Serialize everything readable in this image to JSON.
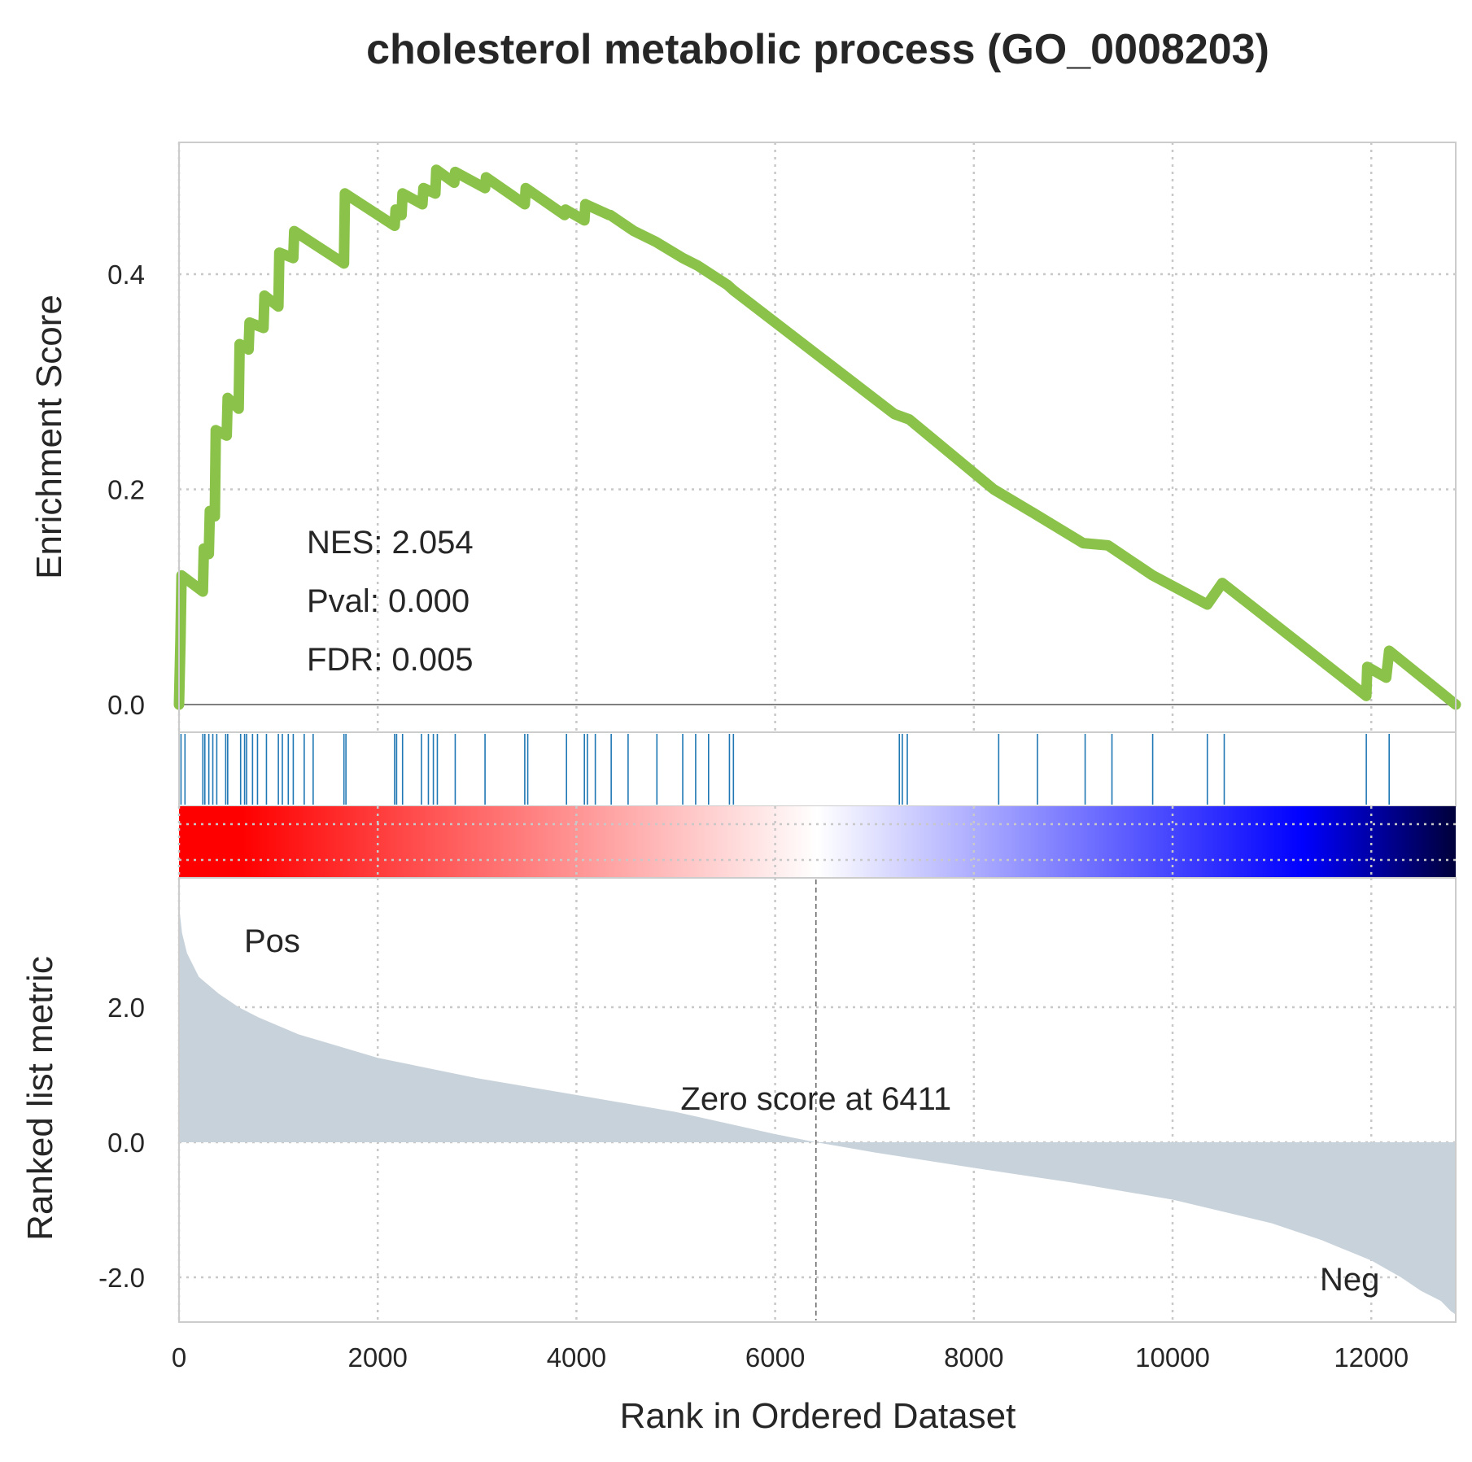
{
  "chart_data": {
    "type": "line",
    "title": "cholesterol metabolic process (GO_0008203)",
    "xlabel": "Rank in Ordered Dataset",
    "xlim": [
      0,
      12850
    ],
    "xticks": [
      "0",
      "2000",
      "4000",
      "6000",
      "8000",
      "10000",
      "12000"
    ],
    "grid": true,
    "colors": {
      "es_line": "#8bc34a",
      "hits": "#1f77b4",
      "ranked_fill": "#c8d2db",
      "pos_label": "#ff0000",
      "neg_label": "#0000ee",
      "heat_stops": [
        "#ff0000",
        "#ffffff",
        "#0000ff",
        "#000040"
      ]
    },
    "enrichment": {
      "ylabel": "Enrichment Score",
      "ylim": [
        0,
        0.5
      ],
      "yticks": [
        "0.0",
        "0.2",
        "0.4"
      ],
      "stats": [
        "NES: 2.054",
        "Pval: 0.000",
        "FDR: 0.005"
      ],
      "es_points": [
        [
          0,
          0
        ],
        [
          15,
          0.06
        ],
        [
          25,
          0.12
        ],
        [
          240,
          0.105
        ],
        [
          250,
          0.145
        ],
        [
          300,
          0.14
        ],
        [
          310,
          0.18
        ],
        [
          360,
          0.175
        ],
        [
          370,
          0.255
        ],
        [
          480,
          0.25
        ],
        [
          490,
          0.285
        ],
        [
          600,
          0.275
        ],
        [
          610,
          0.335
        ],
        [
          700,
          0.33
        ],
        [
          710,
          0.355
        ],
        [
          850,
          0.35
        ],
        [
          860,
          0.38
        ],
        [
          1000,
          0.37
        ],
        [
          1010,
          0.42
        ],
        [
          1150,
          0.415
        ],
        [
          1160,
          0.44
        ],
        [
          1660,
          0.41
        ],
        [
          1670,
          0.475
        ],
        [
          2170,
          0.445
        ],
        [
          2180,
          0.46
        ],
        [
          2240,
          0.455
        ],
        [
          2250,
          0.475
        ],
        [
          2450,
          0.465
        ],
        [
          2460,
          0.48
        ],
        [
          2580,
          0.475
        ],
        [
          2590,
          0.497
        ],
        [
          2770,
          0.485
        ],
        [
          2780,
          0.495
        ],
        [
          3080,
          0.48
        ],
        [
          3090,
          0.49
        ],
        [
          3480,
          0.465
        ],
        [
          3490,
          0.48
        ],
        [
          3880,
          0.455
        ],
        [
          3890,
          0.46
        ],
        [
          4080,
          0.45
        ],
        [
          4090,
          0.465
        ],
        [
          4330,
          0.455
        ],
        [
          4340,
          0.455
        ],
        [
          4580,
          0.44
        ],
        [
          4800,
          0.43
        ],
        [
          5070,
          0.415
        ],
        [
          5220,
          0.408
        ],
        [
          5520,
          0.39
        ],
        [
          5580,
          0.385
        ],
        [
          7200,
          0.27
        ],
        [
          7350,
          0.265
        ],
        [
          8200,
          0.2
        ],
        [
          8600,
          0.178
        ],
        [
          9100,
          0.15
        ],
        [
          9350,
          0.148
        ],
        [
          9800,
          0.12
        ],
        [
          10350,
          0.093
        ],
        [
          10500,
          0.113
        ],
        [
          11950,
          0.008
        ],
        [
          11960,
          0.035
        ],
        [
          12150,
          0.025
        ],
        [
          12180,
          0.05
        ],
        [
          12850,
          0
        ]
      ],
      "hits": [
        20,
        60,
        240,
        260,
        300,
        340,
        380,
        470,
        490,
        620,
        660,
        680,
        740,
        790,
        880,
        1000,
        1040,
        1100,
        1150,
        1260,
        1350,
        1660,
        1680,
        2170,
        2190,
        2250,
        2440,
        2510,
        2560,
        2600,
        2780,
        3080,
        3480,
        3510,
        3900,
        4080,
        4110,
        4190,
        4350,
        4520,
        4810,
        5070,
        5200,
        5330,
        5540,
        5580,
        7250,
        7280,
        7330,
        8250,
        8640,
        9120,
        9390,
        9800,
        10350,
        10520,
        11950,
        12180
      ]
    },
    "ranked": {
      "ylabel": "Ranked list metric",
      "ylim": [
        -2.5,
        3.7
      ],
      "yticks": [
        "-2.0",
        "0.0",
        "2.0"
      ],
      "pos_label": "Pos",
      "neg_label": "Neg",
      "zero_text": "Zero score at 6411",
      "zero_rank": 6411,
      "metric_points": [
        [
          0,
          3.5
        ],
        [
          30,
          3.1
        ],
        [
          80,
          2.8
        ],
        [
          200,
          2.45
        ],
        [
          400,
          2.2
        ],
        [
          600,
          2.0
        ],
        [
          800,
          1.85
        ],
        [
          1200,
          1.6
        ],
        [
          2000,
          1.25
        ],
        [
          3000,
          0.95
        ],
        [
          4000,
          0.7
        ],
        [
          5000,
          0.45
        ],
        [
          6000,
          0.12
        ],
        [
          6411,
          0
        ],
        [
          7000,
          -0.15
        ],
        [
          8000,
          -0.38
        ],
        [
          9000,
          -0.6
        ],
        [
          10000,
          -0.85
        ],
        [
          11000,
          -1.2
        ],
        [
          11500,
          -1.45
        ],
        [
          12000,
          -1.75
        ],
        [
          12300,
          -2.0
        ],
        [
          12500,
          -2.2
        ],
        [
          12700,
          -2.35
        ],
        [
          12800,
          -2.5
        ],
        [
          12850,
          -2.55
        ]
      ]
    }
  }
}
